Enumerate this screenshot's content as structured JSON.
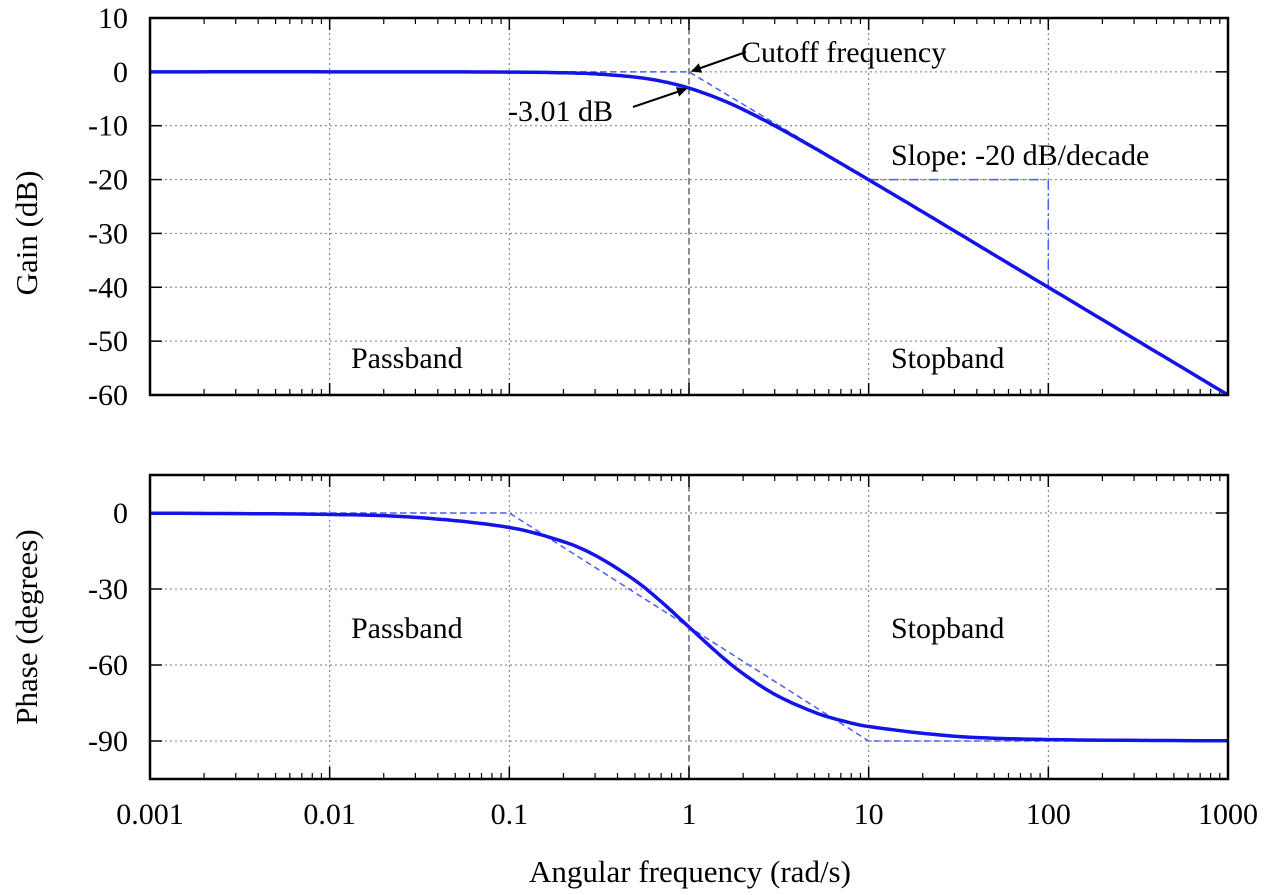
{
  "chart_data": [
    {
      "type": "line",
      "panel": "gain",
      "xscale": "log",
      "xlim": [
        0.001,
        1000
      ],
      "ylim": [
        -60,
        10
      ],
      "xlabel": "",
      "ylabel": "Gain (dB)",
      "yticks": [
        10,
        0,
        -10,
        -20,
        -30,
        -40,
        -50,
        -60
      ],
      "grid": true,
      "series": [
        {
          "style": "solid",
          "color": "#1414e6",
          "x": [
            0.001,
            0.01,
            0.1,
            0.2,
            0.3,
            0.5,
            0.7,
            1,
            1.5,
            2,
            3,
            5,
            7,
            10,
            20,
            50,
            100,
            300,
            1000
          ],
          "y": [
            0,
            0,
            -0.04,
            -0.17,
            -0.37,
            -0.97,
            -1.73,
            -3.01,
            -5.12,
            -6.99,
            -10,
            -14.15,
            -17.0,
            -20.04,
            -26.0,
            -33.98,
            -40,
            -49.54,
            -60
          ]
        },
        {
          "style": "dashed",
          "color": "#4a5ff0",
          "x": [
            0.001,
            1,
            1000
          ],
          "y": [
            0,
            0,
            -60
          ]
        }
      ],
      "slope_guide": {
        "x": [
          10,
          100,
          100
        ],
        "y": [
          -20,
          -20,
          -40
        ]
      },
      "annotations": {
        "cutoff": "Cutoff frequency",
        "minus3db": "-3.01 dB",
        "slope": "Slope: -20 dB/decade",
        "passband": "Passband",
        "stopband": "Stopband"
      }
    },
    {
      "type": "line",
      "panel": "phase",
      "xscale": "log",
      "xlim": [
        0.001,
        1000
      ],
      "ylim": [
        -105,
        15
      ],
      "xlabel": "Angular frequency (rad/s)",
      "ylabel": "Phase (degrees)",
      "xticks": [
        0.001,
        0.01,
        0.1,
        1,
        10,
        100,
        1000
      ],
      "xtick_labels": [
        "0.001",
        "0.01",
        "0.1",
        "1",
        "10",
        "100",
        "1000"
      ],
      "yticks": [
        0,
        -30,
        -60,
        -90
      ],
      "grid": true,
      "series": [
        {
          "style": "solid",
          "color": "#1414e6",
          "x": [
            0.001,
            0.01,
            0.03,
            0.1,
            0.2,
            0.3,
            0.5,
            0.7,
            1,
            1.5,
            2,
            3,
            5,
            7,
            10,
            30,
            100,
            1000
          ],
          "y": [
            -0.06,
            -0.57,
            -1.72,
            -5.71,
            -11.31,
            -16.7,
            -26.57,
            -34.99,
            -45,
            -56.31,
            -63.43,
            -71.57,
            -78.69,
            -81.87,
            -84.29,
            -88.09,
            -89.43,
            -89.94
          ]
        },
        {
          "style": "dashed",
          "color": "#4a5ff0",
          "x": [
            0.001,
            0.1,
            10,
            1000
          ],
          "y": [
            0,
            0,
            -90,
            -90
          ]
        }
      ],
      "annotations": {
        "passband": "Passband",
        "stopband": "Stopband"
      }
    }
  ]
}
